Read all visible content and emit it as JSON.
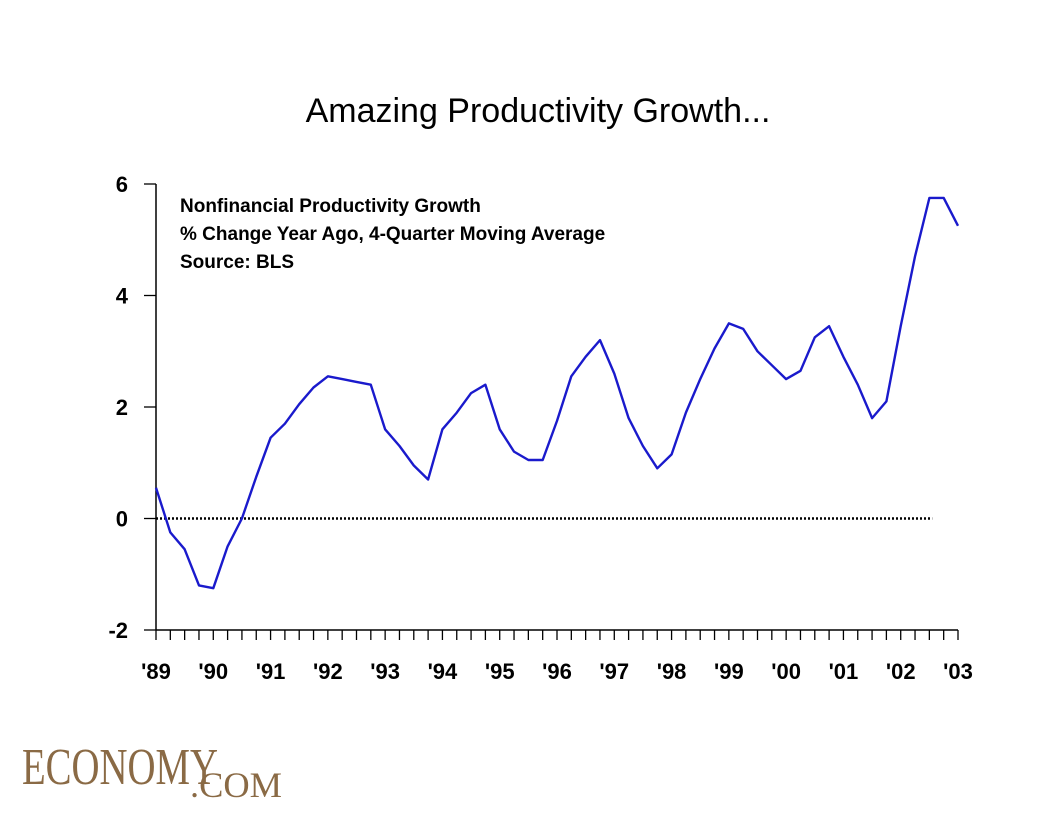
{
  "colors": {
    "series": "#1a1acc",
    "axis": "#000000",
    "logo": "#8a6a45"
  },
  "chart_data": {
    "type": "line",
    "title": "Amazing Productivity Growth...",
    "annotations": [
      "Nonfinancial Productivity Growth",
      "% Change Year Ago, 4-Quarter Moving Average",
      "Source: BLS"
    ],
    "xlabel": "",
    "ylabel": "",
    "ylim": [
      -2,
      6
    ],
    "yticks": [
      -2,
      0,
      2,
      4,
      6
    ],
    "ytick_labels": [
      "-2",
      "0",
      "2",
      "4",
      "6"
    ],
    "xlim": [
      1989.0,
      2003.0
    ],
    "xticks": [
      1989,
      1990,
      1991,
      1992,
      1993,
      1994,
      1995,
      1996,
      1997,
      1998,
      1999,
      2000,
      2001,
      2002,
      2003
    ],
    "xtick_labels": [
      "'89",
      "'90",
      "'91",
      "'92",
      "'93",
      "'94",
      "'95",
      "'96",
      "'97",
      "'98",
      "'99",
      "'00",
      "'01",
      "'02",
      "'03"
    ],
    "minor_ticks_per_year": 4,
    "reference_line": {
      "y": 0,
      "style": "dotted"
    },
    "grid": false,
    "series": [
      {
        "color": "#1a1acc",
        "x": [
          1989.0,
          1989.25,
          1989.5,
          1989.75,
          1990.0,
          1990.25,
          1990.5,
          1990.75,
          1991.0,
          1991.25,
          1991.5,
          1991.75,
          1992.0,
          1992.25,
          1992.5,
          1992.75,
          1993.0,
          1993.25,
          1993.5,
          1993.75,
          1994.0,
          1994.25,
          1994.5,
          1994.75,
          1995.0,
          1995.25,
          1995.5,
          1995.75,
          1996.0,
          1996.25,
          1996.5,
          1996.75,
          1997.0,
          1997.25,
          1997.5,
          1997.75,
          1998.0,
          1998.25,
          1998.5,
          1998.75,
          1999.0,
          1999.25,
          1999.5,
          1999.75,
          2000.0,
          2000.25,
          2000.5,
          2000.75,
          2001.0,
          2001.25,
          2001.5,
          2001.75,
          2002.0,
          2002.25,
          2002.5,
          2002.75,
          2003.0
        ],
        "values": [
          0.55,
          -0.25,
          -0.55,
          -1.2,
          -1.25,
          -0.5,
          0.0,
          0.75,
          1.45,
          1.7,
          2.05,
          2.35,
          2.55,
          2.5,
          2.45,
          2.4,
          1.6,
          1.3,
          0.95,
          0.7,
          1.6,
          1.9,
          2.25,
          2.4,
          1.6,
          1.2,
          1.05,
          1.05,
          1.75,
          2.55,
          2.9,
          3.2,
          2.6,
          1.8,
          1.3,
          0.9,
          1.15,
          1.9,
          2.5,
          3.05,
          3.5,
          3.4,
          3.0,
          2.75,
          2.5,
          2.65,
          3.25,
          3.45,
          2.9,
          2.4,
          1.8,
          2.1,
          3.45,
          4.7,
          5.75,
          5.75,
          5.25
        ]
      }
    ]
  },
  "logo": {
    "main": "ECONOMY",
    "sub": ".COM"
  }
}
